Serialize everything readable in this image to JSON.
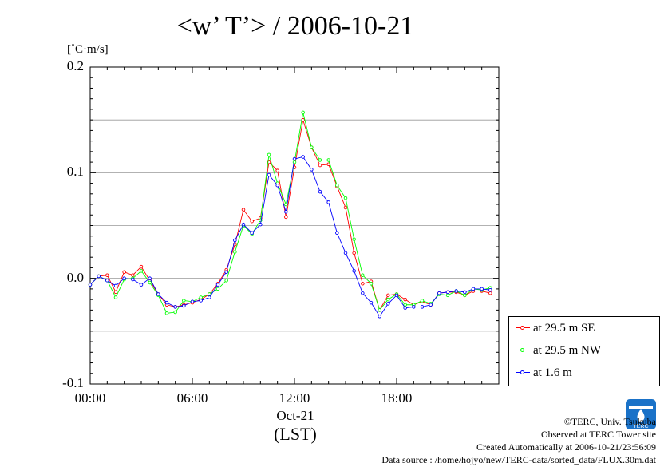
{
  "title": "<w’ T’> / 2006-10-21",
  "unit": "[˚C·m/s]",
  "x_date_label": "Oct-21",
  "x_tz_label": "(LST)",
  "legend": [
    {
      "label": "at 29.5 m SE",
      "color": "#ff0000"
    },
    {
      "label": "at 29.5 m NW",
      "color": "#00ff00"
    },
    {
      "label": "at 1.6 m",
      "color": "#0000ff"
    }
  ],
  "footer": {
    "copyright": "©TERC, Univ. Tsukuba",
    "observed": "Observed at TERC Tower site",
    "created": "Created Automatically at 2006-10-21/23:56:09",
    "source": "Data source : /home/hojyo/new/TERC-data/sorted_data/FLUX.30m.dat"
  },
  "logo_text": "TERC",
  "chart_data": {
    "type": "line",
    "title": "<w’ T’> / 2006-10-21",
    "ylabel": "[˚C·m/s]",
    "xlabel": "(LST)",
    "xlim": [
      0,
      24
    ],
    "ylim": [
      -0.1,
      0.2
    ],
    "x_ticks": [
      {
        "value": 0,
        "label": "00:00"
      },
      {
        "value": 6,
        "label": "06:00"
      },
      {
        "value": 12,
        "label": "12:00"
      },
      {
        "value": 18,
        "label": "18:00"
      }
    ],
    "y_ticks": [
      {
        "value": -0.1,
        "label": "-0.1"
      },
      {
        "value": 0.0,
        "label": "0.0"
      },
      {
        "value": 0.1,
        "label": "0.1"
      },
      {
        "value": 0.2,
        "label": "0.2"
      }
    ],
    "grid_y": [
      -0.05,
      0.0,
      0.05,
      0.1,
      0.15
    ],
    "legend_position": "bottom-right-outside",
    "series": [
      {
        "name": "at 29.5 m SE",
        "color": "#ff0000",
        "x": [
          0,
          0.5,
          1,
          1.5,
          2,
          2.5,
          3,
          3.5,
          4,
          4.5,
          5,
          5.5,
          6,
          6.5,
          7,
          7.5,
          8,
          8.5,
          9,
          9.5,
          10,
          10.5,
          11,
          11.5,
          12,
          12.5,
          13,
          13.5,
          14,
          14.5,
          15,
          15.5,
          16,
          16.5,
          17,
          17.5,
          18,
          18.5,
          19,
          19.5,
          20,
          20.5,
          21,
          21.5,
          22,
          22.5,
          23,
          23.5
        ],
        "values": [
          -0.006,
          0.002,
          0.003,
          -0.013,
          0.006,
          0.003,
          0.011,
          -0.002,
          -0.015,
          -0.025,
          -0.027,
          -0.025,
          -0.023,
          -0.02,
          -0.015,
          -0.005,
          0.008,
          0.032,
          0.065,
          0.054,
          0.057,
          0.11,
          0.102,
          0.058,
          0.105,
          0.15,
          0.124,
          0.107,
          0.108,
          0.087,
          0.067,
          0.024,
          -0.005,
          -0.003,
          -0.03,
          -0.016,
          -0.015,
          -0.02,
          -0.025,
          -0.022,
          -0.025,
          -0.014,
          -0.013,
          -0.013,
          -0.016,
          -0.012,
          -0.012,
          -0.014
        ]
      },
      {
        "name": "at 29.5 m NW",
        "color": "#00ff00",
        "x": [
          0,
          0.5,
          1,
          1.5,
          2,
          2.5,
          3,
          3.5,
          4,
          4.5,
          5,
          5.5,
          6,
          6.5,
          7,
          7.5,
          8,
          8.5,
          9,
          9.5,
          10,
          10.5,
          11,
          11.5,
          12,
          12.5,
          13,
          13.5,
          14,
          14.5,
          15,
          15.5,
          16,
          16.5,
          17,
          17.5,
          18,
          18.5,
          19,
          19.5,
          20,
          20.5,
          21,
          21.5,
          22,
          22.5,
          23,
          23.5
        ],
        "values": [
          -0.006,
          0.002,
          -0.002,
          -0.018,
          -0.001,
          0.0,
          0.007,
          -0.004,
          -0.016,
          -0.033,
          -0.032,
          -0.021,
          -0.022,
          -0.018,
          -0.015,
          -0.01,
          -0.002,
          0.025,
          0.05,
          0.042,
          0.055,
          0.117,
          0.09,
          0.07,
          0.11,
          0.157,
          0.124,
          0.112,
          0.112,
          0.088,
          0.076,
          0.037,
          0.003,
          -0.005,
          -0.03,
          -0.02,
          -0.015,
          -0.025,
          -0.025,
          -0.021,
          -0.024,
          -0.015,
          -0.016,
          -0.012,
          -0.016,
          -0.01,
          -0.011,
          -0.009
        ]
      },
      {
        "name": "at 1.6 m",
        "color": "#0000ff",
        "x": [
          0,
          0.5,
          1,
          1.5,
          2,
          2.5,
          3,
          3.5,
          4,
          4.5,
          5,
          5.5,
          6,
          6.5,
          7,
          7.5,
          8,
          8.5,
          9,
          9.5,
          10,
          10.5,
          11,
          11.5,
          12,
          12.5,
          13,
          13.5,
          14,
          14.5,
          15,
          15.5,
          16,
          16.5,
          17,
          17.5,
          18,
          18.5,
          19,
          19.5,
          20,
          20.5,
          21,
          21.5,
          22,
          22.5,
          23,
          23.5
        ],
        "values": [
          -0.006,
          0.002,
          -0.002,
          -0.007,
          0.0,
          -0.001,
          -0.006,
          0.0,
          -0.015,
          -0.023,
          -0.027,
          -0.026,
          -0.022,
          -0.021,
          -0.018,
          -0.006,
          0.006,
          0.036,
          0.051,
          0.043,
          0.051,
          0.098,
          0.088,
          0.063,
          0.113,
          0.115,
          0.103,
          0.082,
          0.072,
          0.043,
          0.024,
          0.007,
          -0.014,
          -0.023,
          -0.036,
          -0.024,
          -0.016,
          -0.028,
          -0.027,
          -0.027,
          -0.025,
          -0.014,
          -0.013,
          -0.012,
          -0.013,
          -0.01,
          -0.01,
          -0.011
        ]
      }
    ]
  }
}
